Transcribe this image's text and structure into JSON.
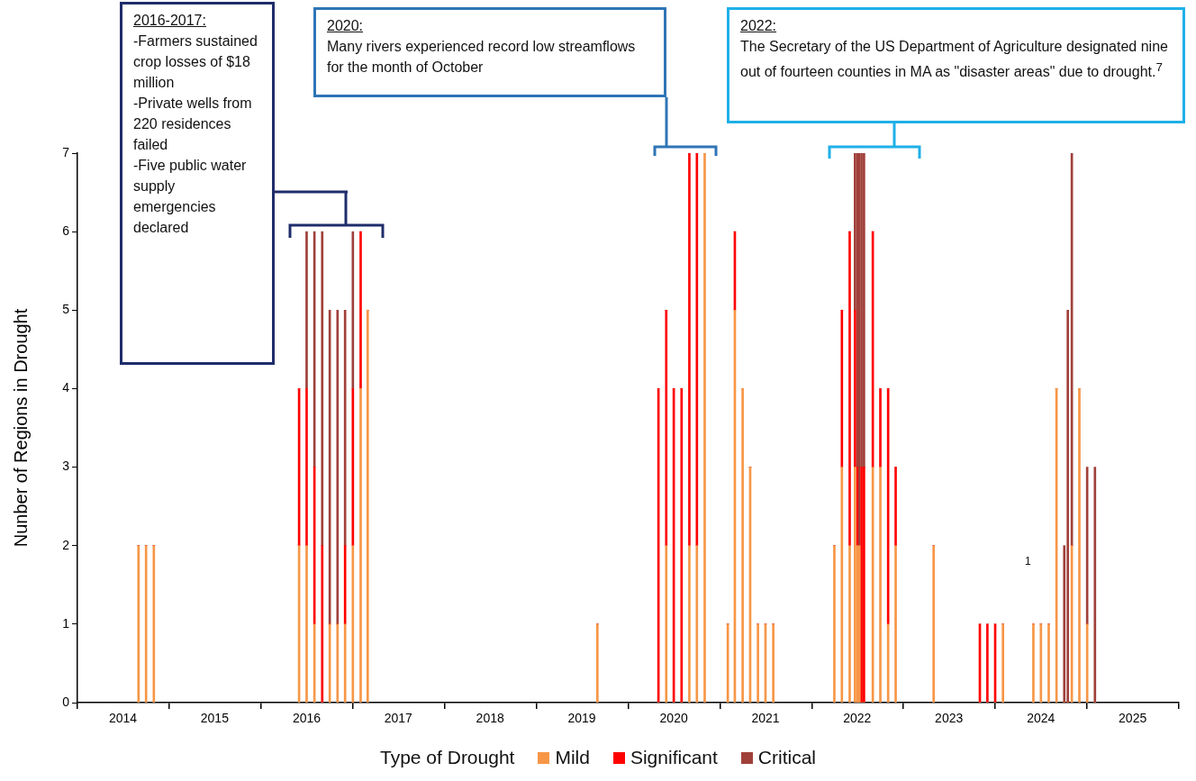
{
  "chart_data": {
    "type": "bar",
    "stacked": true,
    "ylabel": "Nunber of Regions in Drought",
    "legend_title": "Type of Drought",
    "legend": "bottom",
    "x": [
      "2014-09",
      "2014-10",
      "2014-11",
      "2016-06",
      "2016-07",
      "2016-08",
      "2016-09",
      "2016-10",
      "2016-11",
      "2016-12",
      "2017-01",
      "2017-02",
      "2017-03",
      "2019-09",
      "2020-05",
      "2020-06",
      "2020-07",
      "2020-08",
      "2020-09",
      "2020-10",
      "2020-11",
      "2021-02",
      "2021-03",
      "2021-04",
      "2021-05",
      "2021-06",
      "2021-07",
      "2021-08",
      "2022-04",
      "2022-05",
      "2022-06",
      "2022-06-22",
      "2022-07-01",
      "2022-07-09",
      "2022-07-18",
      "2022-07-28",
      "2022-09",
      "2022-10",
      "2022-11",
      "2022-12",
      "2023-05",
      "2023-11",
      "2023-12",
      "2024-01",
      "2024-02",
      "2024-06",
      "2024-07",
      "2024-08",
      "2024-09",
      "2024-10-02",
      "2024-10-16",
      "2024-11",
      "2024-12",
      "2025-01",
      "2025-02"
    ],
    "series": [
      {
        "name": "Mild",
        "color": "#f79646",
        "values": [
          2,
          2,
          2,
          2,
          2,
          1,
          0,
          1,
          1,
          1,
          2,
          4,
          5,
          1,
          0,
          2,
          0,
          0,
          2,
          2,
          7,
          1,
          5,
          4,
          3,
          1,
          1,
          1,
          2,
          3,
          2,
          3,
          2,
          2,
          0,
          0,
          3,
          3,
          1,
          2,
          2,
          0,
          0,
          0,
          1,
          1,
          1,
          1,
          4,
          0,
          0,
          2,
          4,
          1,
          0
        ]
      },
      {
        "name": "Significant",
        "color": "#ff0000",
        "values": [
          0,
          0,
          0,
          2,
          2,
          2,
          2,
          0,
          0,
          1,
          2,
          2,
          0,
          0,
          4,
          3,
          4,
          4,
          5,
          5,
          0,
          0,
          1,
          0,
          0,
          0,
          0,
          0,
          0,
          2,
          4,
          2,
          1,
          0,
          3,
          3,
          3,
          1,
          3,
          1,
          0,
          1,
          1,
          1,
          0,
          0,
          0,
          0,
          0,
          0,
          0,
          0,
          0,
          0,
          0
        ]
      },
      {
        "name": "Critical",
        "color": "#a0403a",
        "values": [
          0,
          0,
          0,
          0,
          2,
          3,
          4,
          4,
          4,
          3,
          2,
          0,
          0,
          0,
          0,
          0,
          0,
          0,
          0,
          0,
          0,
          0,
          0,
          0,
          0,
          0,
          0,
          0,
          0,
          0,
          0,
          2,
          4,
          5,
          4,
          4,
          0,
          0,
          0,
          0,
          0,
          0,
          0,
          0,
          0,
          0,
          0,
          0,
          0,
          2,
          5,
          5,
          0,
          2,
          3
        ]
      }
    ],
    "xlim": [
      "2014-01",
      "2026-01"
    ],
    "xticks": [
      {
        "value": "2014-01",
        "label": null
      },
      {
        "value": "2014-07",
        "label": "2014"
      },
      {
        "value": "2015-01",
        "label": null
      },
      {
        "value": "2015-07",
        "label": "2015"
      },
      {
        "value": "2016-01",
        "label": null
      },
      {
        "value": "2016-07",
        "label": "2016"
      },
      {
        "value": "2017-01",
        "label": null
      },
      {
        "value": "2017-07",
        "label": "2017"
      },
      {
        "value": "2018-01",
        "label": null
      },
      {
        "value": "2018-07",
        "label": "2018"
      },
      {
        "value": "2019-01",
        "label": null
      },
      {
        "value": "2019-07",
        "label": "2019"
      },
      {
        "value": "2020-01",
        "label": null
      },
      {
        "value": "2020-07",
        "label": "2020"
      },
      {
        "value": "2021-01",
        "label": null
      },
      {
        "value": "2021-07",
        "label": "2021"
      },
      {
        "value": "2022-01",
        "label": null
      },
      {
        "value": "2022-07",
        "label": "2022"
      },
      {
        "value": "2023-01",
        "label": null
      },
      {
        "value": "2023-07",
        "label": "2023"
      },
      {
        "value": "2024-01",
        "label": null
      },
      {
        "value": "2024-07",
        "label": "2024"
      },
      {
        "value": "2025-01",
        "label": null
      },
      {
        "value": "2025-07",
        "label": "2025"
      },
      {
        "value": "2026-01",
        "label": null
      }
    ],
    "ylim": [
      0,
      7
    ],
    "yticks": [
      0,
      1,
      2,
      3,
      4,
      5,
      6,
      7
    ],
    "annotations": [
      "2016-2017:\n-Farmers sustained crop losses of $18 million\n-Private wells from 220 residences failed\n-Five public water supply emergencies declared",
      "2020:\nMany rivers experienced record low streamflows for the month of October",
      "2022:\nThe Secretary of the US Department of Agriculture designated nine out of fourteen counties in MA as \"disaster areas\" due to drought.$^{7}$",
      "1"
    ]
  }
}
